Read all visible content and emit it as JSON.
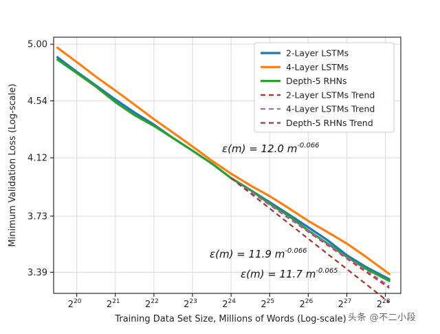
{
  "chart_data": {
    "type": "line",
    "xlabel": "Training Data Set Size, Millions of Words (Log-scale)",
    "ylabel": "Minimum Validation Loss (Log-scale)",
    "x_scale": "log2",
    "y_scale": "log",
    "grid": true,
    "legend_position": "top-right",
    "xlim_log2": [
      19.4,
      28.4
    ],
    "ylim": [
      3.27,
      5.06
    ],
    "x_ticks": [
      {
        "base": "2",
        "exp": "20",
        "log2": 20
      },
      {
        "base": "2",
        "exp": "21",
        "log2": 21
      },
      {
        "base": "2",
        "exp": "22",
        "log2": 22
      },
      {
        "base": "2",
        "exp": "23",
        "log2": 23
      },
      {
        "base": "2",
        "exp": "24",
        "log2": 24
      },
      {
        "base": "2",
        "exp": "25",
        "log2": 25
      },
      {
        "base": "2",
        "exp": "26",
        "log2": 26
      },
      {
        "base": "2",
        "exp": "27",
        "log2": 27
      },
      {
        "base": "2",
        "exp": "28",
        "log2": 28
      }
    ],
    "y_ticks": [
      "5.00",
      "4.54",
      "4.12",
      "3.73",
      "3.39"
    ],
    "series": [
      {
        "name": "2-Layer LSTMs",
        "color": "#1f77b4",
        "style": "solid",
        "x_log2": [
          19.5,
          20.0,
          20.5,
          21.0,
          21.5,
          22.0,
          22.5,
          23.0,
          23.5,
          24.0,
          24.5,
          25.0,
          25.5,
          26.0,
          26.5,
          27.0,
          27.5,
          28.1
        ],
        "y": [
          4.89,
          4.77,
          4.66,
          4.55,
          4.45,
          4.36,
          4.26,
          4.17,
          4.08,
          3.98,
          3.9,
          3.82,
          3.74,
          3.66,
          3.58,
          3.49,
          3.42,
          3.35
        ]
      },
      {
        "name": "4-Layer LSTMs",
        "color": "#ff7f0e",
        "style": "solid",
        "x_log2": [
          19.5,
          20.0,
          20.5,
          21.0,
          21.5,
          22.0,
          22.5,
          23.0,
          23.5,
          24.0,
          24.5,
          25.0,
          25.5,
          26.0,
          26.5,
          27.0,
          27.5,
          28.1
        ],
        "y": [
          4.97,
          4.85,
          4.73,
          4.62,
          4.51,
          4.4,
          4.3,
          4.2,
          4.1,
          4.01,
          3.93,
          3.86,
          3.78,
          3.7,
          3.63,
          3.56,
          3.48,
          3.38
        ]
      },
      {
        "name": "Depth-5 RHNs",
        "color": "#2ca02c",
        "style": "solid",
        "x_log2": [
          19.5,
          20.0,
          20.5,
          21.0,
          21.5,
          22.0,
          22.5,
          23.0,
          23.5,
          24.0,
          24.5,
          25.0,
          25.5,
          26.0,
          26.5,
          27.0,
          27.5,
          28.1
        ],
        "y": [
          4.87,
          4.76,
          4.65,
          4.53,
          4.43,
          4.35,
          4.26,
          4.17,
          4.08,
          3.98,
          3.9,
          3.81,
          3.73,
          3.64,
          3.56,
          3.48,
          3.41,
          3.34
        ]
      },
      {
        "name": "2-Layer LSTMs Trend",
        "color": "#d62728",
        "style": "dashed",
        "x_log2": [
          24.0,
          28.1
        ],
        "y": [
          3.98,
          3.3
        ]
      },
      {
        "name": "4-Layer LSTMs Trend",
        "color": "#9467bd",
        "style": "dashed",
        "x_log2": [
          24.0,
          28.1
        ],
        "y": [
          3.98,
          3.31
        ]
      },
      {
        "name": "Depth-5 RHNs Trend",
        "color": "#a0342c",
        "style": "dashed",
        "x_log2": [
          24.0,
          28.1
        ],
        "y": [
          3.98,
          3.22
        ]
      }
    ],
    "annotations": [
      {
        "prefix": "ε(m) = 12.0 m",
        "exp": "-0.066"
      },
      {
        "prefix": "ε(m) = 11.9 m",
        "exp": "-0.066"
      },
      {
        "prefix": "ε(m) = 11.7 m",
        "exp": "-0.065"
      }
    ]
  },
  "watermark": "头条 @不二小段"
}
